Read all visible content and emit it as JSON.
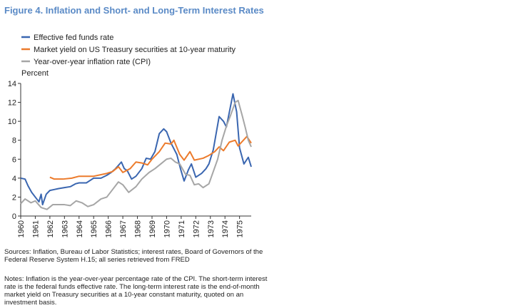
{
  "chart_data": {
    "type": "line",
    "title": "Figure 4. Inflation and Short- and Long-Term Interest Rates",
    "y_label": "Percent",
    "xlim": [
      1960,
      1975.8
    ],
    "xticks": [
      1960,
      1961,
      1962,
      1963,
      1964,
      1965,
      1966,
      1967,
      1968,
      1969,
      1970,
      1971,
      1972,
      1973,
      1974,
      1975
    ],
    "ylim": [
      0,
      14
    ],
    "yticks": [
      0,
      2,
      4,
      6,
      8,
      10,
      12,
      14
    ],
    "series": [
      {
        "name": "Effective fed funds rate",
        "color": "#3a66b0",
        "x": [
          1960,
          1960.3,
          1960.5,
          1960.75,
          1961,
          1961.25,
          1961.4,
          1961.5,
          1961.75,
          1962,
          1962.3,
          1962.6,
          1963,
          1963.4,
          1963.75,
          1964,
          1964.5,
          1965,
          1965.5,
          1965.9,
          1966.2,
          1966.5,
          1966.9,
          1967.1,
          1967.3,
          1967.6,
          1967.9,
          1968.3,
          1968.6,
          1968.9,
          1969.2,
          1969.5,
          1969.8,
          1970,
          1970.3,
          1970.7,
          1970.95,
          1971.2,
          1971.5,
          1971.7,
          1972,
          1972.4,
          1972.7,
          1972.9,
          1973.2,
          1973.6,
          1973.9,
          1974.1,
          1974.55,
          1974.8,
          1975,
          1975.3,
          1975.6,
          1975.8
        ],
        "values": [
          4.0,
          3.9,
          3.2,
          2.5,
          2.0,
          1.5,
          2.3,
          1.2,
          2.3,
          2.7,
          2.8,
          2.9,
          3.0,
          3.1,
          3.4,
          3.5,
          3.5,
          4.0,
          4.0,
          4.3,
          4.6,
          5.0,
          5.7,
          5.0,
          4.8,
          3.9,
          4.2,
          5.0,
          6.1,
          6.0,
          6.8,
          8.7,
          9.2,
          8.9,
          7.7,
          6.5,
          5.0,
          3.7,
          4.9,
          5.5,
          4.1,
          4.5,
          5.0,
          5.5,
          7.0,
          10.5,
          10.0,
          9.4,
          12.9,
          11.0,
          7.2,
          5.5,
          6.2,
          5.2
        ]
      },
      {
        "name": "Market yield on US Treasury securities at 10-year maturity",
        "color": "#ec7b2c",
        "x": [
          1962,
          1962.3,
          1962.9,
          1963.5,
          1964,
          1965,
          1965.9,
          1966.3,
          1966.7,
          1967,
          1967.5,
          1967.9,
          1968.3,
          1968.7,
          1969,
          1969.5,
          1969.9,
          1970.3,
          1970.5,
          1970.9,
          1971.2,
          1971.6,
          1971.9,
          1972.5,
          1972.9,
          1973.3,
          1973.6,
          1973.9,
          1974.3,
          1974.7,
          1974.9,
          1975.2,
          1975.5,
          1975.8
        ],
        "values": [
          4.1,
          3.9,
          3.9,
          4.0,
          4.2,
          4.2,
          4.5,
          4.7,
          5.2,
          4.6,
          5.0,
          5.7,
          5.6,
          5.4,
          6.0,
          6.8,
          7.7,
          7.6,
          8.0,
          6.5,
          5.9,
          6.8,
          5.9,
          6.1,
          6.4,
          6.8,
          7.3,
          6.9,
          7.8,
          8.0,
          7.4,
          7.9,
          8.4,
          7.7
        ]
      },
      {
        "name": "Year-over-year inflation rate (CPI)",
        "color": "#a6a6a6",
        "x": [
          1960,
          1960.3,
          1960.7,
          1961,
          1961.4,
          1961.8,
          1962.2,
          1962.6,
          1963,
          1963.4,
          1963.8,
          1964.2,
          1964.6,
          1965,
          1965.5,
          1965.9,
          1966.3,
          1966.7,
          1967,
          1967.4,
          1967.9,
          1968.3,
          1968.8,
          1969.2,
          1969.6,
          1970,
          1970.3,
          1970.6,
          1970.9,
          1971.3,
          1971.6,
          1971.9,
          1972.2,
          1972.5,
          1972.9,
          1973.2,
          1973.5,
          1973.8,
          1974.1,
          1974.4,
          1974.7,
          1974.9,
          1975.2,
          1975.4,
          1975.6,
          1975.8
        ],
        "values": [
          1.3,
          1.8,
          1.4,
          1.6,
          0.9,
          0.7,
          1.2,
          1.2,
          1.2,
          1.1,
          1.6,
          1.4,
          1.0,
          1.2,
          1.8,
          2.0,
          2.8,
          3.6,
          3.3,
          2.5,
          3.1,
          3.9,
          4.6,
          5.0,
          5.5,
          6.0,
          6.1,
          5.7,
          5.5,
          4.4,
          4.3,
          3.3,
          3.4,
          3.0,
          3.4,
          4.7,
          6.0,
          8.0,
          9.5,
          10.7,
          12.0,
          12.2,
          10.5,
          9.3,
          8.0,
          7.3
        ]
      }
    ],
    "sources": "Sources: Inflation, Bureau of Labor Statistics; interest rates, Board of Governors of the Federal Reserve System H.15; all series retrieved from FRED",
    "notes": "Notes: Inflation is the year-over-year percentage rate of the CPI. The short-term interest rate is the federal funds effective rate. The long-term interest rate is the end-of-month market yield on Treasury securities at a 10-year constant maturity, quoted on an investment basis."
  }
}
